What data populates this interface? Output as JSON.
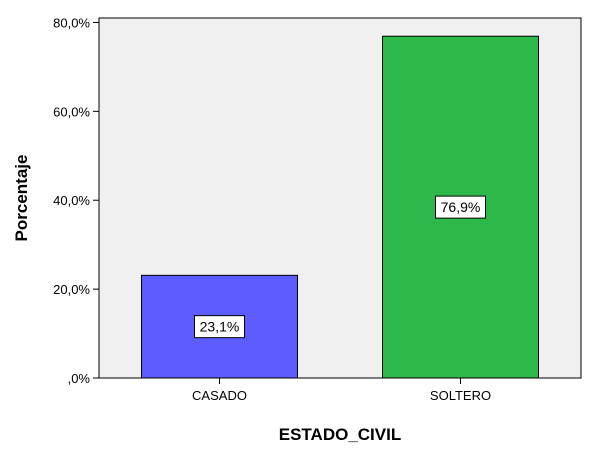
{
  "chart_data": {
    "type": "bar",
    "title": "",
    "xlabel": "ESTADO_CIVIL",
    "ylabel": "Porcentaje",
    "categories": [
      "CASADO",
      "SOLTERO"
    ],
    "values": [
      23.1,
      76.9
    ],
    "data_labels": [
      "23,1%",
      "76,9%"
    ],
    "bar_colors": [
      "#5c5cff",
      "#2db84a"
    ],
    "ylim": [
      0,
      80
    ],
    "yticks": [
      {
        "value": 0,
        "label": ",0%"
      },
      {
        "value": 20,
        "label": "20,0%"
      },
      {
        "value": 40,
        "label": "40,0%"
      },
      {
        "value": 60,
        "label": "60,0%"
      },
      {
        "value": 80,
        "label": "80,0%"
      }
    ],
    "grid": false,
    "legend": "none",
    "plot_background": "#f0f0f0"
  }
}
